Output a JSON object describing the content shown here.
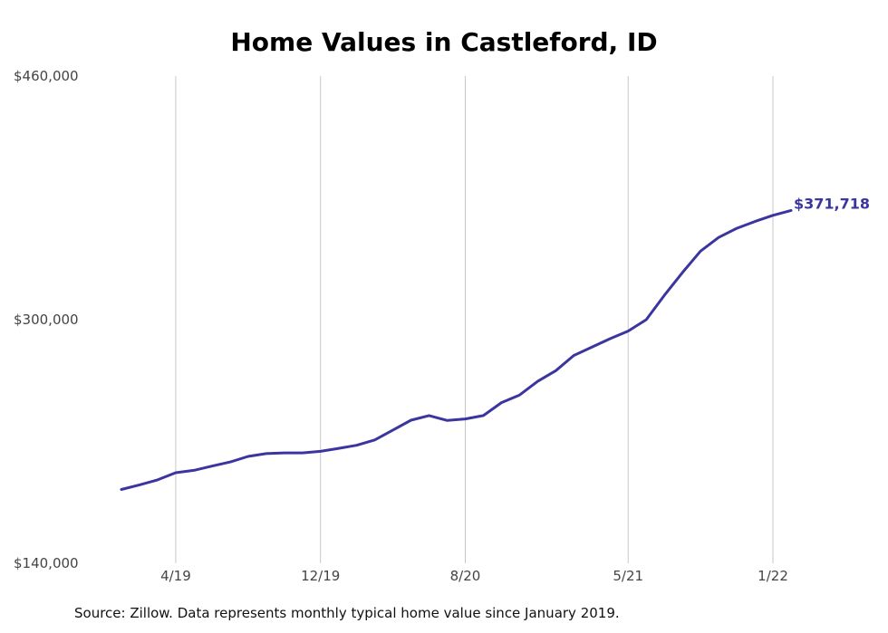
{
  "chart_data": {
    "type": "line",
    "title": "Home Values in Castleford, ID",
    "xlabel": "",
    "ylabel": "",
    "ylim": [
      140000,
      460000
    ],
    "y_ticks": [
      {
        "value": 140000,
        "label": "$140,000"
      },
      {
        "value": 300000,
        "label": "$300,000"
      },
      {
        "value": 460000,
        "label": "$460,000"
      }
    ],
    "x_ticks": [
      {
        "x": "2019-04",
        "label": "4/19"
      },
      {
        "x": "2019-12",
        "label": "12/19"
      },
      {
        "x": "2020-08",
        "label": "8/20"
      },
      {
        "x": "2021-05",
        "label": "5/21"
      },
      {
        "x": "2022-01",
        "label": "1/22"
      }
    ],
    "grid": "vertical",
    "color": "#3b35a0",
    "series": [
      {
        "x": [
          "2019-01",
          "2019-02",
          "2019-03",
          "2019-04",
          "2019-05",
          "2019-06",
          "2019-07",
          "2019-08",
          "2019-09",
          "2019-10",
          "2019-11",
          "2019-12",
          "2020-01",
          "2020-02",
          "2020-03",
          "2020-04",
          "2020-05",
          "2020-06",
          "2020-07",
          "2020-08",
          "2020-09",
          "2020-10",
          "2020-11",
          "2020-12",
          "2021-01",
          "2021-02",
          "2021-03",
          "2021-04",
          "2021-05",
          "2021-06",
          "2021-07",
          "2021-08",
          "2021-09",
          "2021-10",
          "2021-11",
          "2021-12",
          "2022-01",
          "2022-02"
        ],
        "values": [
          188500,
          191500,
          194800,
          199500,
          201000,
          203800,
          206500,
          210200,
          212000,
          212500,
          212500,
          213500,
          215500,
          217500,
          221000,
          227500,
          234000,
          237000,
          233800,
          234800,
          237000,
          245500,
          250500,
          259500,
          266500,
          276500,
          282000,
          287500,
          292500,
          300000,
          316000,
          331000,
          345000,
          354000,
          360000,
          364500,
          368500,
          371718
        ]
      }
    ],
    "end_label": "$371,718"
  },
  "source_note": "Source: Zillow. Data represents monthly typical home value since January 2019."
}
